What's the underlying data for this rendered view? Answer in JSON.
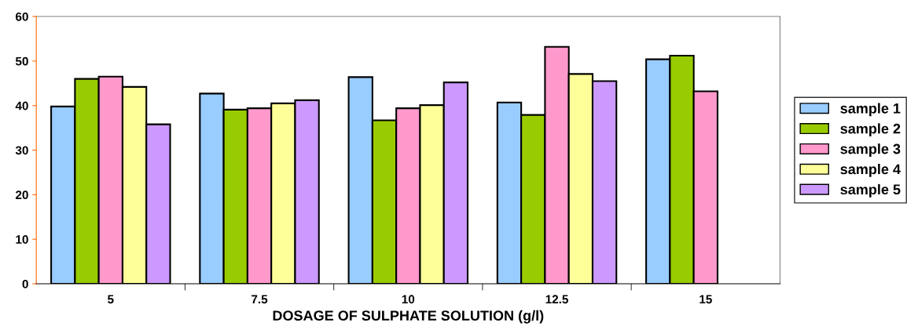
{
  "chart_data": {
    "type": "bar",
    "xlabel": "DOSAGE OF SULPHATE SOLUTION (g/l)",
    "categories": [
      "5",
      "7.5",
      "10",
      "12.5",
      "15"
    ],
    "series": [
      {
        "name": "sample 1",
        "color": "#99ccff",
        "values": [
          39.8,
          42.7,
          46.4,
          40.7,
          50.4
        ]
      },
      {
        "name": "sample 2",
        "color": "#99cc00",
        "values": [
          46.0,
          39.1,
          36.7,
          37.9,
          51.2
        ]
      },
      {
        "name": "sample 3",
        "color": "#ff99cc",
        "values": [
          46.5,
          39.4,
          39.4,
          53.2,
          43.2
        ]
      },
      {
        "name": "sample 4",
        "color": "#ffff99",
        "values": [
          44.2,
          40.5,
          40.1,
          47.1,
          null
        ]
      },
      {
        "name": "sample 5",
        "color": "#cc99ff",
        "values": [
          35.8,
          41.2,
          45.2,
          45.5,
          null
        ]
      }
    ],
    "ylim": [
      0,
      60
    ],
    "yticks": [
      0,
      10,
      20,
      30,
      40,
      50,
      60
    ],
    "grid": false,
    "legend": "right"
  }
}
